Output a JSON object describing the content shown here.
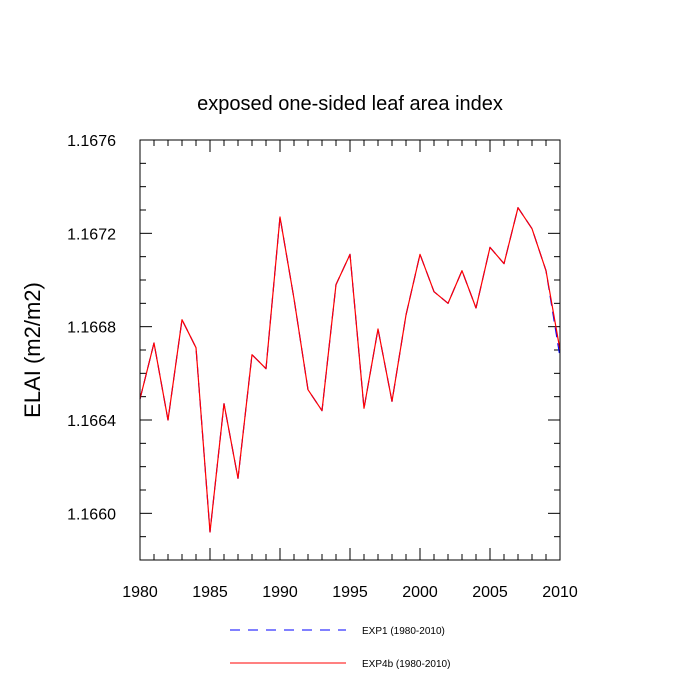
{
  "chart_data": {
    "type": "line",
    "title": "exposed one-sided leaf area index",
    "xlabel": "",
    "ylabel": "ELAI  (m2/m2)",
    "xlim": [
      1980,
      2010
    ],
    "ylim": [
      1.1658,
      1.1676
    ],
    "x_ticks": [
      1980,
      1985,
      1990,
      1995,
      2000,
      2005,
      2010
    ],
    "x_tick_labels": [
      "1980",
      "1985",
      "1990",
      "1995",
      "2000",
      "2005",
      "2010"
    ],
    "y_ticks": [
      1.166,
      1.1664,
      1.1668,
      1.1672,
      1.1676
    ],
    "y_tick_labels": [
      "1.1660",
      "1.1664",
      "1.1668",
      "1.1672",
      "1.1676"
    ],
    "grid": false,
    "legend_position": "bottom",
    "x": [
      1980,
      1981,
      1982,
      1983,
      1984,
      1985,
      1986,
      1987,
      1988,
      1989,
      1990,
      1991,
      1992,
      1993,
      1994,
      1995,
      1996,
      1997,
      1998,
      1999,
      2000,
      2001,
      2002,
      2003,
      2004,
      2005,
      2006,
      2007,
      2008,
      2009,
      2010
    ],
    "series": [
      {
        "name": "EXP1 (1980-2010)",
        "color": "#0000ff",
        "style": "dashed",
        "values": [
          1.16649,
          1.16673,
          1.1664,
          1.16683,
          1.16671,
          1.16592,
          1.16647,
          1.16615,
          1.16668,
          1.16662,
          1.16727,
          1.16692,
          1.16653,
          1.16644,
          1.16698,
          1.16711,
          1.16645,
          1.16679,
          1.16648,
          1.16685,
          1.16711,
          1.16695,
          1.1669,
          1.16704,
          1.16688,
          1.16714,
          1.16707,
          1.16731,
          1.16722,
          1.16704,
          1.16667
        ]
      },
      {
        "name": "EXP4b (1980-2010)",
        "color": "#ff0000",
        "style": "solid",
        "values": [
          1.16649,
          1.16673,
          1.1664,
          1.16683,
          1.16671,
          1.16592,
          1.16647,
          1.16615,
          1.16668,
          1.16662,
          1.16727,
          1.16692,
          1.16653,
          1.16644,
          1.16698,
          1.16711,
          1.16645,
          1.16679,
          1.16648,
          1.16685,
          1.16711,
          1.16695,
          1.1669,
          1.16704,
          1.16688,
          1.16714,
          1.16707,
          1.16731,
          1.16722,
          1.16704,
          1.1667
        ]
      }
    ]
  }
}
